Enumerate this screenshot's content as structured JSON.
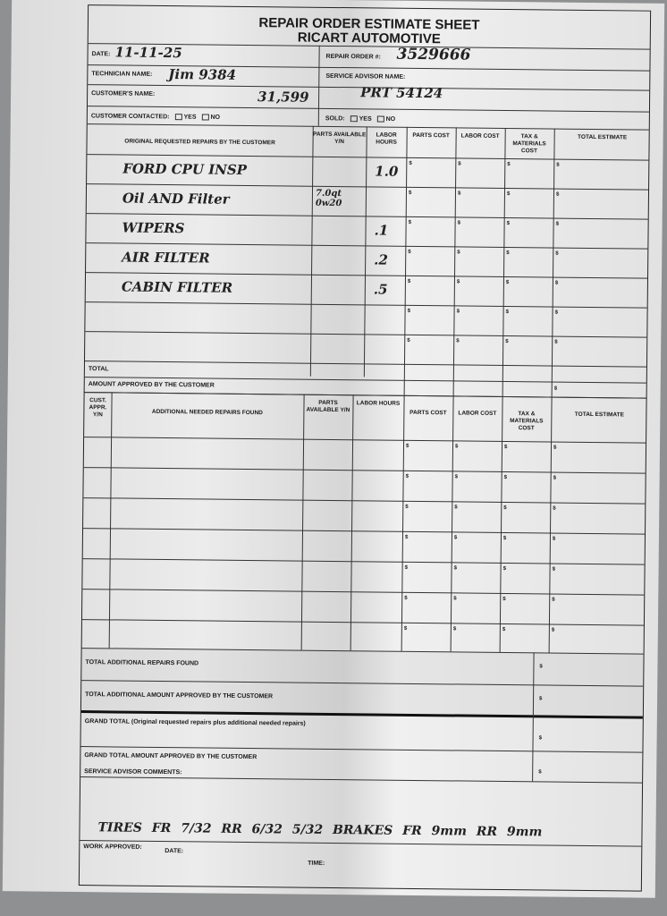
{
  "form": {
    "title_line1": "REPAIR ORDER ESTIMATE SHEET",
    "title_line2": "RICART AUTOMOTIVE"
  },
  "header": {
    "date_label": "DATE:",
    "date_value": "11-11-25",
    "repair_order_label": "REPAIR ORDER #:",
    "repair_order_value": "3529666",
    "technician_label": "TECHNICIAN NAME:",
    "technician_value": "Jim 9384",
    "service_advisor_label": "SERVICE ADVISOR NAME:",
    "service_advisor_value": "PRT 54124",
    "customer_label": "CUSTOMER'S NAME:",
    "customer_value": "31,599",
    "contacted_label": "CUSTOMER CONTACTED:",
    "yes": "YES",
    "no": "NO",
    "sold_label": "SOLD:"
  },
  "original": {
    "headers": [
      "ORIGINAL REQUESTED REPAIRS BY THE CUSTOMER",
      "PARTS AVAILABLE Y/N",
      "LABOR HOURS",
      "PARTS COST",
      "LABOR COST",
      "TAX & MATERIALS COST",
      "TOTAL ESTIMATE"
    ],
    "rows": [
      {
        "repair": "FORD CPU INSP",
        "parts": "",
        "hours": "1.0"
      },
      {
        "repair": "Oil AND Filter",
        "parts": "7.0qt 0w20",
        "hours": ""
      },
      {
        "repair": "WIPERS",
        "parts": "",
        "hours": ".1"
      },
      {
        "repair": "AIR FILTER",
        "parts": "",
        "hours": ".2"
      },
      {
        "repair": "CABIN FILTER",
        "parts": "",
        "hours": ".5"
      },
      {
        "repair": "",
        "parts": "",
        "hours": ""
      },
      {
        "repair": "",
        "parts": "",
        "hours": ""
      }
    ],
    "total_label": "TOTAL",
    "approved_label": "AMOUNT APPROVED BY THE CUSTOMER",
    "currency": "$"
  },
  "additional": {
    "headers": [
      "CUST. APPR. Y/N",
      "ADDITIONAL NEEDED REPAIRS FOUND",
      "PARTS AVAILABLE Y/N",
      "LABOR HOURS",
      "PARTS COST",
      "LABOR COST",
      "TAX & MATERIALS COST",
      "TOTAL ESTIMATE"
    ]
  },
  "totals": {
    "additional_found": "TOTAL ADDITIONAL REPAIRS FOUND",
    "additional_approved": "TOTAL ADDITIONAL AMOUNT APPROVED BY THE CUSTOMER",
    "grand_total": "GRAND TOTAL (Original requested repairs plus additional needed repairs)",
    "grand_approved": "GRAND TOTAL AMOUNT APPROVED BY THE CUSTOMER",
    "comments_label": "SERVICE ADVISOR COMMENTS:",
    "comments_value": "TIRES FR 7/32   RR 6/32 5/32 BRAKES   FR 9mm   RR 9mm",
    "work_approved": "WORK APPROVED:",
    "date": "DATE:",
    "time": "TIME:"
  }
}
